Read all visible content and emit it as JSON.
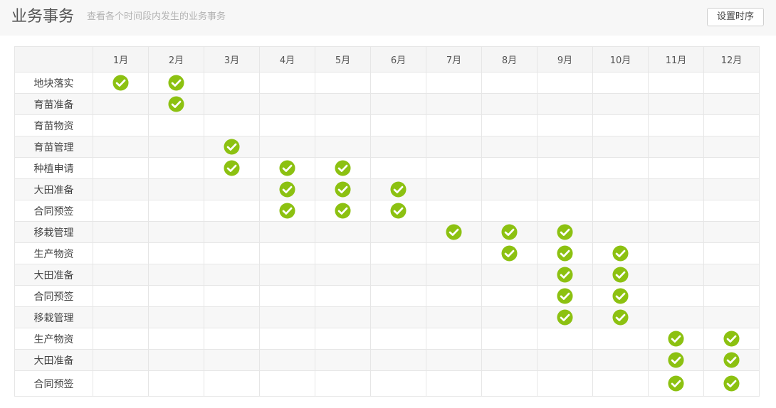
{
  "header": {
    "title": "业务事务",
    "subtitle": "查看各个时间段内发生的业务事务",
    "settings_label": "设置时序"
  },
  "colors": {
    "check": "#8cc111",
    "header_bg": "#f7f7f7",
    "grid_line": "#e6e6e6"
  },
  "icons": {
    "check": "check-circle-icon"
  },
  "months": [
    "1月",
    "2月",
    "3月",
    "4月",
    "5月",
    "6月",
    "7月",
    "8月",
    "9月",
    "10月",
    "11月",
    "12月"
  ],
  "tasks": [
    {
      "label": "地块落实",
      "months": [
        1,
        2
      ]
    },
    {
      "label": "育苗准备",
      "months": [
        2
      ]
    },
    {
      "label": "育苗物资",
      "months": []
    },
    {
      "label": "育苗管理",
      "months": [
        3
      ]
    },
    {
      "label": "种植申请",
      "months": [
        3,
        4,
        5
      ]
    },
    {
      "label": "大田准备",
      "months": [
        4,
        5,
        6
      ]
    },
    {
      "label": "合同预签",
      "months": [
        4,
        5,
        6
      ]
    },
    {
      "label": "移栽管理",
      "months": [
        7,
        8,
        9
      ]
    },
    {
      "label": "生产物资",
      "months": [
        8,
        9,
        10
      ]
    },
    {
      "label": "大田准备",
      "months": [
        9,
        10
      ]
    },
    {
      "label": "合同预签",
      "months": [
        9,
        10
      ]
    },
    {
      "label": "移栽管理",
      "months": [
        9,
        10
      ]
    },
    {
      "label": "生产物资",
      "months": [
        11,
        12
      ]
    },
    {
      "label": "大田准备",
      "months": [
        11,
        12
      ]
    },
    {
      "label": "合同预签",
      "months": [
        11,
        12
      ]
    }
  ]
}
